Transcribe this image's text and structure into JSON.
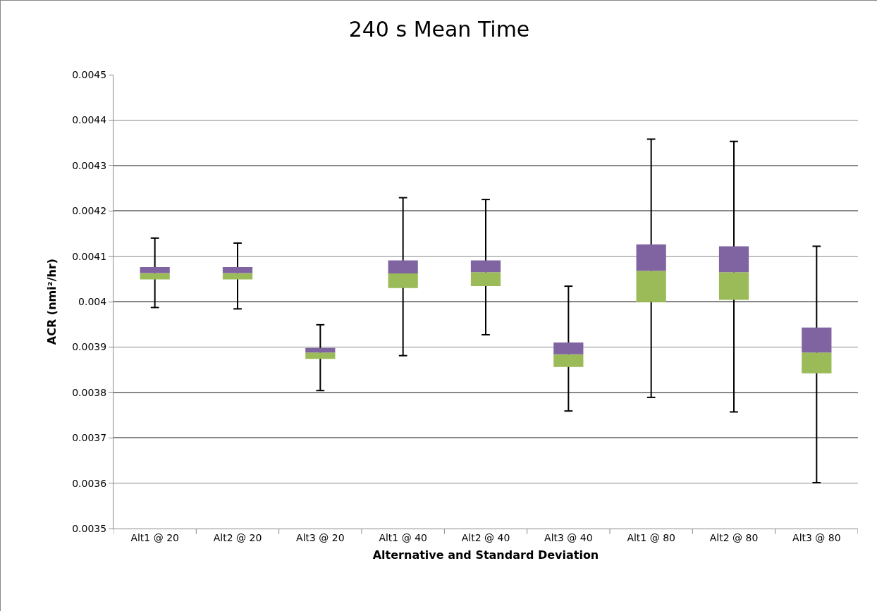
{
  "chart_data": {
    "type": "box",
    "title": "240 s Mean Time",
    "xlabel": "Alternative and Standard Deviation",
    "ylabel": "ACR (nmi²/hr)",
    "categories": [
      "Alt1 @ 20",
      "Alt2 @ 20",
      "Alt3 @ 20",
      "Alt1 @ 40",
      "Alt2 @ 40",
      "Alt3 @ 40",
      "Alt1 @ 80",
      "Alt2 @ 80",
      "Alt3 @ 80"
    ],
    "series": [
      {
        "colors": [
          [
            "#9bbb59",
            "#8064a2"
          ],
          [
            "#9bbb59",
            "#8064a2"
          ],
          [
            "#9bbb59",
            "#8064a2"
          ],
          [
            "#9bbb59",
            "#8064a2"
          ],
          [
            "#9bbb59",
            "#8064a2"
          ],
          [
            "#9bbb59",
            "#8064a2"
          ],
          [
            "#9bbb59",
            "#8064a2"
          ],
          [
            "#9bbb59",
            "#8064a2"
          ],
          [
            "#9bbb59",
            "#8064a2"
          ]
        ],
        "boxes": [
          {
            "low": 0.003987,
            "q1": 0.004049,
            "median": 0.004063,
            "q3": 0.004076,
            "high": 0.00414
          },
          {
            "low": 0.003984,
            "q1": 0.004049,
            "median": 0.004063,
            "q3": 0.004076,
            "high": 0.004129
          },
          {
            "low": 0.003804,
            "q1": 0.003874,
            "median": 0.003888,
            "q3": 0.003898,
            "high": 0.003949
          },
          {
            "low": 0.003881,
            "q1": 0.00403,
            "median": 0.004062,
            "q3": 0.004091,
            "high": 0.004229
          },
          {
            "low": 0.003927,
            "q1": 0.004034,
            "median": 0.004065,
            "q3": 0.004091,
            "high": 0.004225
          },
          {
            "low": 0.003759,
            "q1": 0.003856,
            "median": 0.003884,
            "q3": 0.00391,
            "high": 0.004034
          },
          {
            "low": 0.003789,
            "q1": 0.003999,
            "median": 0.004068,
            "q3": 0.004126,
            "high": 0.004358
          },
          {
            "low": 0.003757,
            "q1": 0.004004,
            "median": 0.004065,
            "q3": 0.004122,
            "high": 0.004353
          },
          {
            "low": 0.003601,
            "q1": 0.003842,
            "median": 0.003888,
            "q3": 0.003943,
            "high": 0.004122
          }
        ]
      }
    ],
    "ylim": [
      0.0035,
      0.0045
    ],
    "yticks": [
      0.0035,
      0.0036,
      0.0037,
      0.0038,
      0.0039,
      {
        "value": 0.004,
        "label": "0.004"
      },
      0.0041,
      0.0042,
      0.0043,
      0.0044,
      0.0045
    ],
    "grid": "y"
  }
}
